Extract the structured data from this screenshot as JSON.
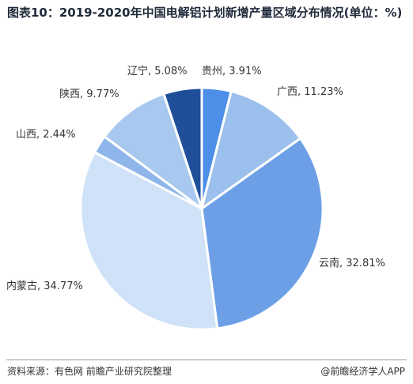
{
  "title": "图表10：2019-2020年中国电解铝计划新增产量区域分布情况(单位：%)",
  "footer": {
    "source": "资料来源：有色网 前瞻产业研究院整理",
    "brand": "@前瞻经济学人APP"
  },
  "chart_data": {
    "type": "pie",
    "title": "图表10：2019-2020年中国电解铝计划新增产量区域分布情况(单位：%)",
    "unit": "%",
    "start_angle_deg": 0,
    "direction": "clockwise",
    "slices": [
      {
        "name": "贵州",
        "value": 3.91,
        "label": "贵州, 3.91%",
        "color": "#4d8ee8"
      },
      {
        "name": "广西",
        "value": 11.23,
        "label": "广西, 11.23%",
        "color": "#9cc0ee"
      },
      {
        "name": "云南",
        "value": 32.81,
        "label": "云南, 32.81%",
        "color": "#6c9fe6"
      },
      {
        "name": "内蒙古",
        "value": 34.77,
        "label": "内蒙古, 34.77%",
        "color": "#cfe2f7"
      },
      {
        "name": "山西",
        "value": 2.44,
        "label": "山西, 2.44%",
        "color": "#8fb6ea"
      },
      {
        "name": "陕西",
        "value": 9.77,
        "label": "陕西, 9.77%",
        "color": "#a9c8f0"
      },
      {
        "name": "辽宁",
        "value": 5.08,
        "label": "辽宁, 5.08%",
        "color": "#1f4f99"
      }
    ]
  }
}
